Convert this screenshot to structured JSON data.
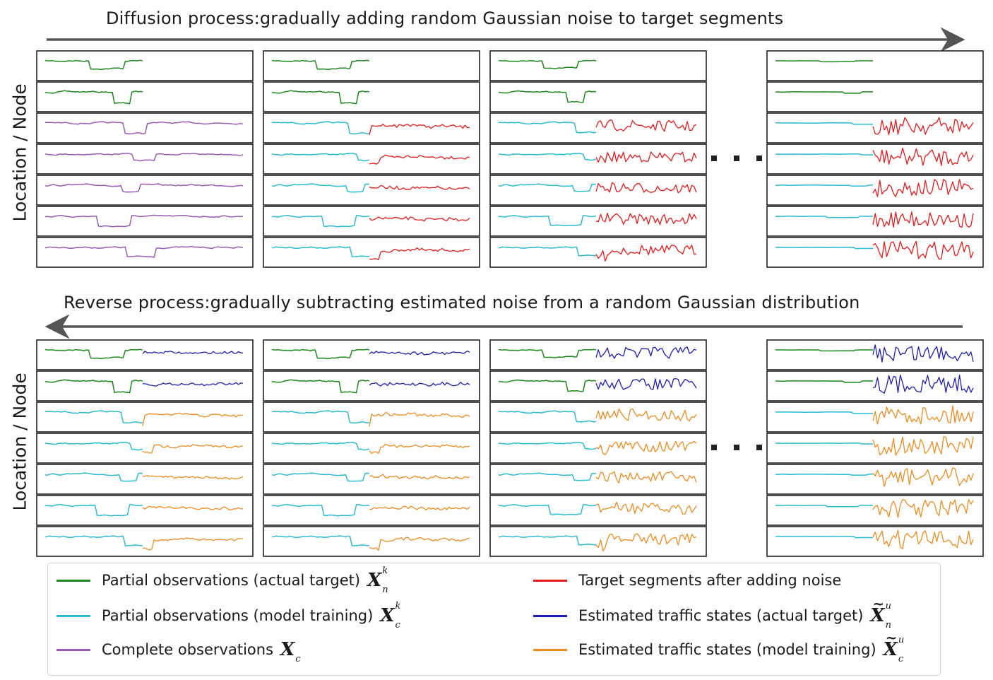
{
  "diffusion": {
    "title": "Diffusion process:gradually adding random Gaussian noise to target segments",
    "ylabel": "Location / Node"
  },
  "reverse": {
    "title": "Reverse process:gradually subtracting estimated noise from a random Gaussian distribution",
    "ylabel": "Location / Node"
  },
  "legend": {
    "items": [
      {
        "label": "Partial observations (actual target)",
        "symbol": "X",
        "sup": "k",
        "sub": "n",
        "tilde": false,
        "color": "#1a8a1a"
      },
      {
        "label": "Partial observations (model training)",
        "symbol": "X",
        "sup": "k",
        "sub": "c",
        "tilde": false,
        "color": "#29bcd4"
      },
      {
        "label": "Complete observations",
        "symbol": "X",
        "sup": "",
        "sub": "c",
        "tilde": false,
        "color": "#9b59b6"
      },
      {
        "label": "Target segments after adding noise",
        "symbol": "",
        "sup": "",
        "sub": "",
        "tilde": false,
        "color": "#e8191a"
      },
      {
        "label": "Estimated traffic states (actual target)",
        "symbol": "X",
        "sup": "u",
        "sub": "n",
        "tilde": true,
        "color": "#1c1cb8"
      },
      {
        "label": "Estimated traffic states (model training)",
        "symbol": "X",
        "sup": "u",
        "sub": "c",
        "tilde": true,
        "color": "#f08a1c"
      }
    ]
  },
  "colors": {
    "actual_target": "#1a8a1a",
    "model_training": "#29bcd4",
    "complete": "#9b59b6",
    "noisy_target": "#e8191a",
    "est_actual": "#1c1cb8",
    "est_model": "#f08a1c",
    "arrow": "#555555",
    "frame": "#222222"
  }
}
